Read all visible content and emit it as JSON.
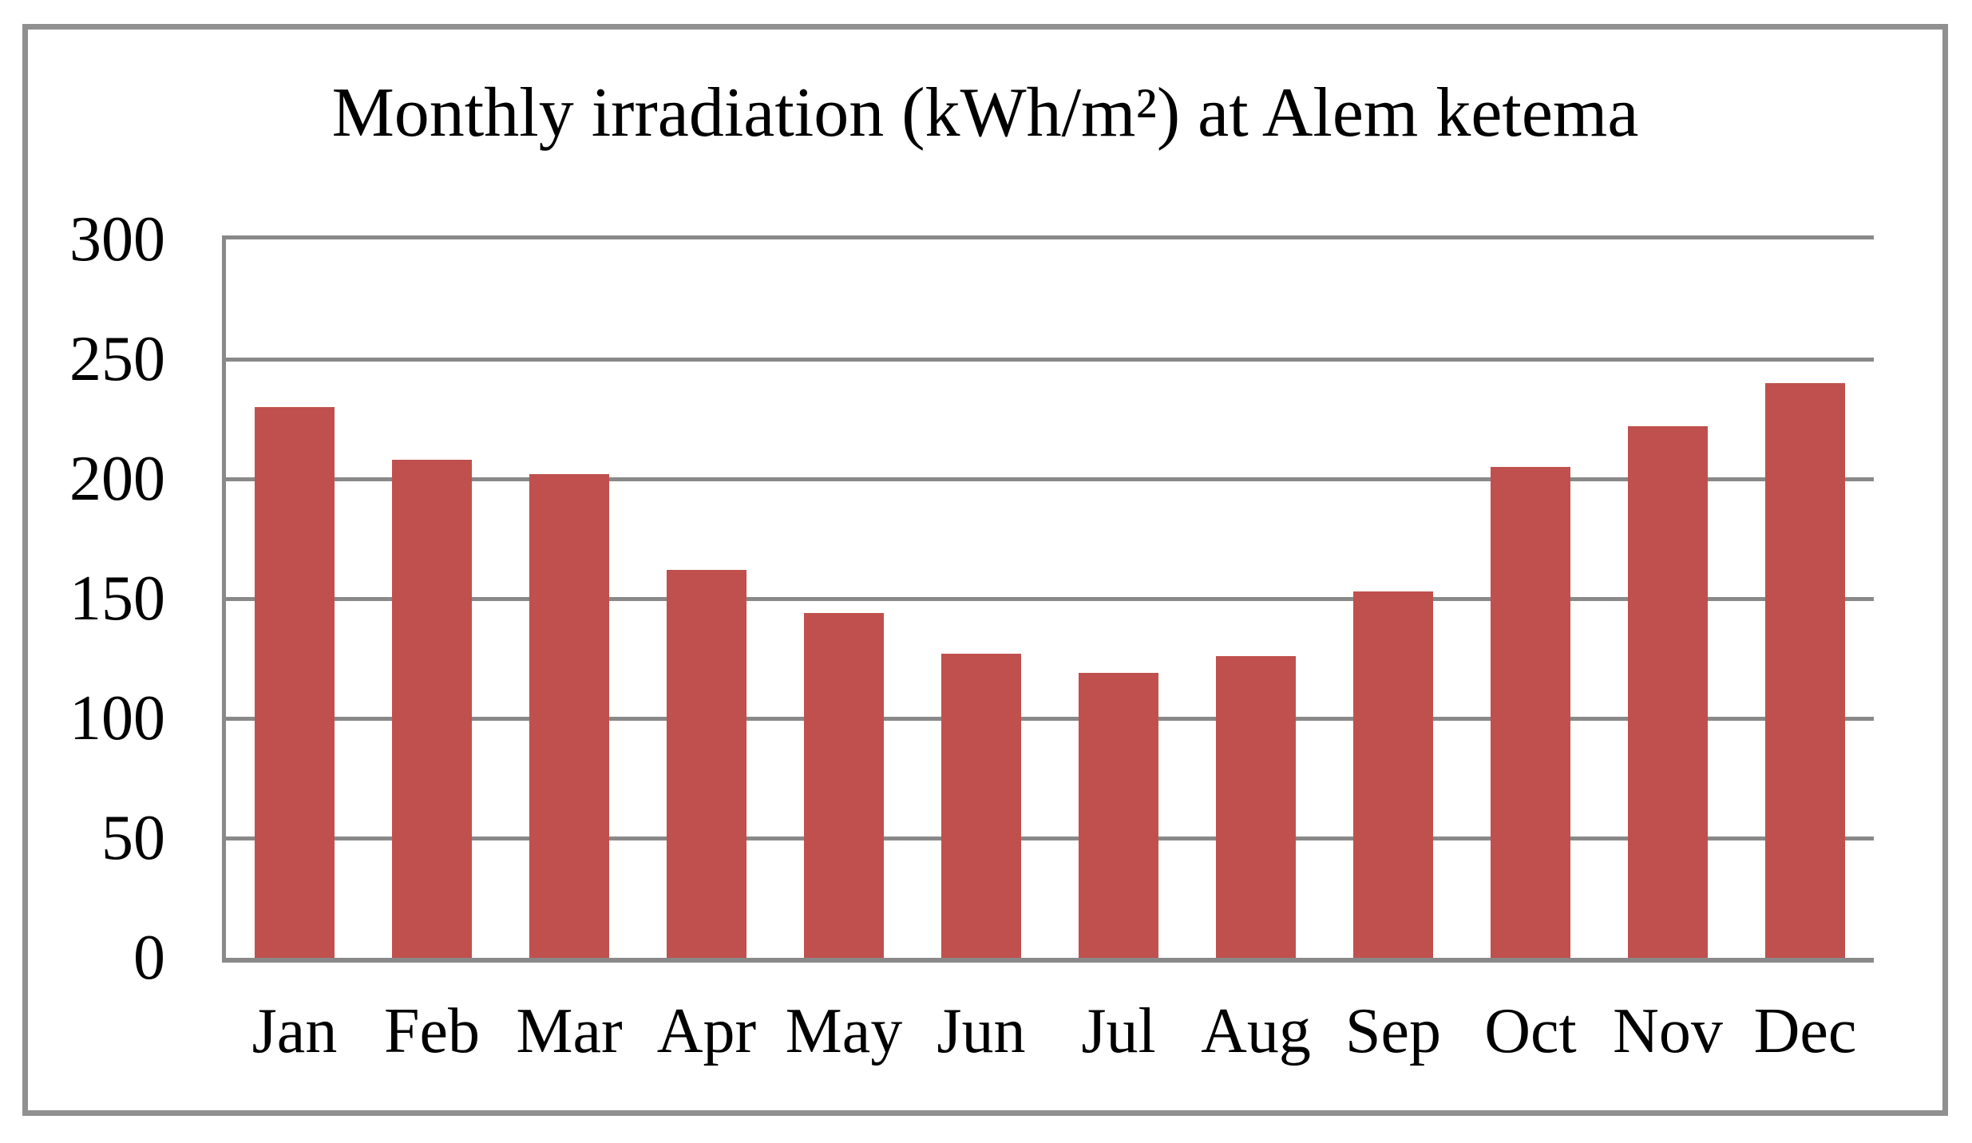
{
  "chart_data": {
    "type": "bar",
    "title": "Monthly irradiation (kWh/m²) at Alem ketema",
    "categories": [
      "Jan",
      "Feb",
      "Mar",
      "Apr",
      "May",
      "Jun",
      "Jul",
      "Aug",
      "Sep",
      "Oct",
      "Nov",
      "Dec"
    ],
    "values": [
      230,
      208,
      202,
      162,
      144,
      127,
      119,
      126,
      153,
      205,
      222,
      240
    ],
    "xlabel": "",
    "ylabel": "",
    "ylim": [
      0,
      300
    ],
    "ytick_interval": 50,
    "yticks": [
      0,
      50,
      100,
      150,
      200,
      250,
      300
    ],
    "grid": "horizontal",
    "legend": "none",
    "colors": {
      "bar": "#C0504D",
      "gridline": "#898989",
      "axis": "#898989",
      "frame_border": "#909090",
      "text": "#000000",
      "background": "#FFFFFF"
    }
  }
}
